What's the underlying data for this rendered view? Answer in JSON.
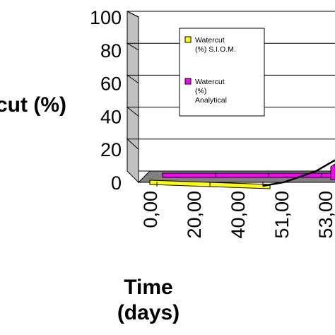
{
  "chart_data": {
    "type": "line",
    "style": "3d",
    "categories": [
      "0,00",
      "20,00",
      "40,00",
      "51,00",
      "53,00"
    ],
    "series": [
      {
        "name": "Watercut (%) S.I.O.M.",
        "color": "#ffff00",
        "values": [
          0,
          0,
          0,
          0,
          0
        ],
        "curve": [
          [
            0,
            0
          ],
          [
            1,
            0
          ],
          [
            2,
            0
          ],
          [
            2.4,
            2
          ],
          [
            3,
            8
          ],
          [
            3.6,
            18
          ],
          [
            4.1,
            34
          ]
        ]
      },
      {
        "name": "Watercut (%) Analytical",
        "color": "#ff00ff",
        "values": [
          0,
          0,
          0,
          0,
          3
        ]
      }
    ],
    "ylabel_visible": "cut (%)",
    "xlabel": [
      "Time",
      "(days)"
    ],
    "yticks": [
      "0",
      "20",
      "40",
      "60",
      "80",
      "100"
    ],
    "ylim": [
      0,
      100
    ],
    "grid": true,
    "legend": "top-center",
    "wall_color": "#ffffff",
    "floor_color": "#808080"
  }
}
